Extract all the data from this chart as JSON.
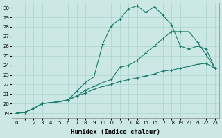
{
  "xlabel": "Humidex (Indice chaleur)",
  "bg_color": "#cce8e4",
  "grid_color": "#b0d8d2",
  "line_color": "#1a7a6e",
  "xlim": [
    -0.5,
    23.5
  ],
  "ylim": [
    18.5,
    30.5
  ],
  "xticks": [
    0,
    1,
    2,
    3,
    4,
    5,
    6,
    7,
    8,
    9,
    10,
    11,
    12,
    13,
    14,
    15,
    16,
    17,
    18,
    19,
    20,
    21,
    22,
    23
  ],
  "yticks": [
    19,
    20,
    21,
    22,
    23,
    24,
    25,
    26,
    27,
    28,
    29,
    30
  ],
  "line1_x": [
    0,
    1,
    2,
    3,
    4,
    5,
    6,
    7,
    8,
    9,
    10,
    11,
    12,
    13,
    14,
    15,
    16,
    17,
    18,
    19,
    20,
    21,
    22,
    23
  ],
  "line1_y": [
    19.0,
    19.1,
    19.5,
    20.0,
    20.1,
    20.2,
    20.4,
    21.3,
    22.2,
    22.8,
    26.2,
    28.1,
    28.8,
    29.9,
    30.2,
    29.5,
    30.1,
    29.2,
    28.2,
    26.0,
    25.7,
    26.0,
    25.7,
    23.7
  ],
  "line2_x": [
    0,
    1,
    2,
    3,
    4,
    5,
    6,
    7,
    8,
    9,
    10,
    11,
    12,
    13,
    14,
    15,
    16,
    17,
    18,
    19,
    20,
    21,
    22,
    23
  ],
  "line2_y": [
    19.0,
    19.1,
    19.5,
    20.0,
    20.1,
    20.2,
    20.4,
    20.8,
    21.4,
    21.8,
    22.2,
    22.5,
    23.8,
    24.0,
    24.5,
    25.3,
    26.0,
    26.8,
    27.5,
    27.5,
    27.5,
    26.4,
    25.1,
    23.7
  ],
  "line3_x": [
    0,
    1,
    2,
    3,
    4,
    5,
    6,
    7,
    8,
    9,
    10,
    11,
    12,
    13,
    14,
    15,
    16,
    17,
    18,
    19,
    20,
    21,
    22,
    23
  ],
  "line3_y": [
    19.0,
    19.1,
    19.5,
    20.0,
    20.1,
    20.2,
    20.4,
    20.8,
    21.1,
    21.5,
    21.8,
    22.0,
    22.3,
    22.5,
    22.7,
    22.9,
    23.1,
    23.4,
    23.5,
    23.7,
    23.9,
    24.1,
    24.2,
    23.7
  ],
  "marker": "+",
  "markersize": 3,
  "linewidth": 0.8,
  "xlabel_fontsize": 6.5,
  "tick_fontsize": 5.0
}
